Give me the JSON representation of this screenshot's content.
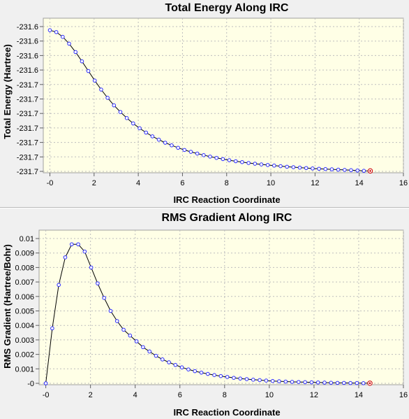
{
  "chart_data": [
    {
      "type": "line",
      "title": "Total Energy Along IRC",
      "xlabel": "IRC Reaction Coordinate",
      "ylabel": "Total Energy (Hartree)",
      "xlim": [
        -0.3,
        16
      ],
      "ylim": [
        0,
        10
      ],
      "grid": true,
      "x_ticks": [
        "-0",
        "2",
        "4",
        "6",
        "8",
        "10",
        "12",
        "14",
        "16"
      ],
      "x_tick_values": [
        0,
        2,
        4,
        6,
        8,
        10,
        12,
        14,
        16
      ],
      "y_ticks": [
        "-231.6",
        "-231.6",
        "-231.6",
        "-231.6",
        "-231.7",
        "-231.7",
        "-231.7",
        "-231.7",
        "-231.7",
        "-231.7",
        "-231.7"
      ],
      "y_tick_values": [
        10,
        9,
        8,
        7,
        6,
        5,
        4,
        3,
        2,
        1,
        0
      ],
      "line_color": "#000000",
      "marker_color": "#2b2bff",
      "end_marker_color": "#cc0000",
      "series": [
        {
          "x": [
            0.0,
            0.29,
            0.58,
            0.87,
            1.16,
            1.45,
            1.74,
            2.03,
            2.32,
            2.61,
            2.9,
            3.19,
            3.48,
            3.77,
            4.06,
            4.35,
            4.64,
            4.93,
            5.22,
            5.51,
            5.8,
            6.09,
            6.38,
            6.67,
            6.96,
            7.25,
            7.54,
            7.83,
            8.12,
            8.41,
            8.7,
            8.99,
            9.28,
            9.57,
            9.86,
            10.15,
            10.44,
            10.73,
            11.02,
            11.31,
            11.6,
            11.89,
            12.18,
            12.47,
            12.76,
            13.05,
            13.34,
            13.63,
            13.92,
            14.21,
            14.5
          ],
          "y": [
            9.75,
            9.62,
            9.29,
            8.82,
            8.24,
            7.6,
            6.93,
            6.27,
            5.65,
            5.08,
            4.56,
            4.1,
            3.68,
            3.31,
            2.98,
            2.68,
            2.42,
            2.19,
            1.98,
            1.8,
            1.63,
            1.48,
            1.35,
            1.23,
            1.12,
            1.02,
            0.93,
            0.85,
            0.77,
            0.7,
            0.64,
            0.58,
            0.53,
            0.48,
            0.44,
            0.4,
            0.36,
            0.32,
            0.29,
            0.26,
            0.23,
            0.2,
            0.18,
            0.16,
            0.14,
            0.12,
            0.1,
            0.08,
            0.06,
            0.04,
            0.03
          ]
        }
      ]
    },
    {
      "type": "line",
      "title": "RMS Gradient Along IRC",
      "xlabel": "IRC Reaction Coordinate",
      "ylabel": "RMS Gradient (Hartree/Bohr)",
      "xlim": [
        -0.3,
        16
      ],
      "ylim": [
        0,
        0.01
      ],
      "grid": true,
      "x_ticks": [
        "-0",
        "2",
        "4",
        "6",
        "8",
        "10",
        "12",
        "14",
        "16"
      ],
      "x_tick_values": [
        0,
        2,
        4,
        6,
        8,
        10,
        12,
        14,
        16
      ],
      "y_ticks": [
        "0.01",
        "0.009",
        "0.008",
        "0.007",
        "0.006",
        "0.005",
        "0.004",
        "0.003",
        "0.002",
        "0.001",
        "-0"
      ],
      "y_tick_values": [
        0.01,
        0.009,
        0.008,
        0.007,
        0.006,
        0.005,
        0.004,
        0.003,
        0.002,
        0.001,
        0
      ],
      "line_color": "#000000",
      "marker_color": "#2b2bff",
      "end_marker_color": "#cc0000",
      "series": [
        {
          "x": [
            0.0,
            0.29,
            0.58,
            0.87,
            1.16,
            1.45,
            1.74,
            2.03,
            2.32,
            2.61,
            2.9,
            3.19,
            3.48,
            3.77,
            4.06,
            4.35,
            4.64,
            4.93,
            5.22,
            5.51,
            5.8,
            6.09,
            6.38,
            6.67,
            6.96,
            7.25,
            7.54,
            7.83,
            8.12,
            8.41,
            8.7,
            8.99,
            9.28,
            9.57,
            9.86,
            10.15,
            10.44,
            10.73,
            11.02,
            11.31,
            11.6,
            11.89,
            12.18,
            12.47,
            12.76,
            13.05,
            13.34,
            13.63,
            13.92,
            14.21,
            14.5
          ],
          "y": [
            0.0,
            0.0038,
            0.0068,
            0.0087,
            0.0096,
            0.0096,
            0.0091,
            0.008,
            0.0069,
            0.0059,
            0.005,
            0.0043,
            0.0037,
            0.0033,
            0.0029,
            0.0025,
            0.0022,
            0.0019,
            0.00165,
            0.00145,
            0.00127,
            0.0011,
            0.00096,
            0.00084,
            0.00074,
            0.00065,
            0.00057,
            0.0005,
            0.00044,
            0.00038,
            0.00033,
            0.00029,
            0.00025,
            0.00022,
            0.00019,
            0.00016,
            0.00014,
            0.00012,
            0.0001,
            9e-05,
            8e-05,
            7e-05,
            6e-05,
            5e-05,
            4e-05,
            3e-05,
            3e-05,
            2e-05,
            2e-05,
            1e-05,
            1e-05
          ]
        }
      ]
    }
  ]
}
